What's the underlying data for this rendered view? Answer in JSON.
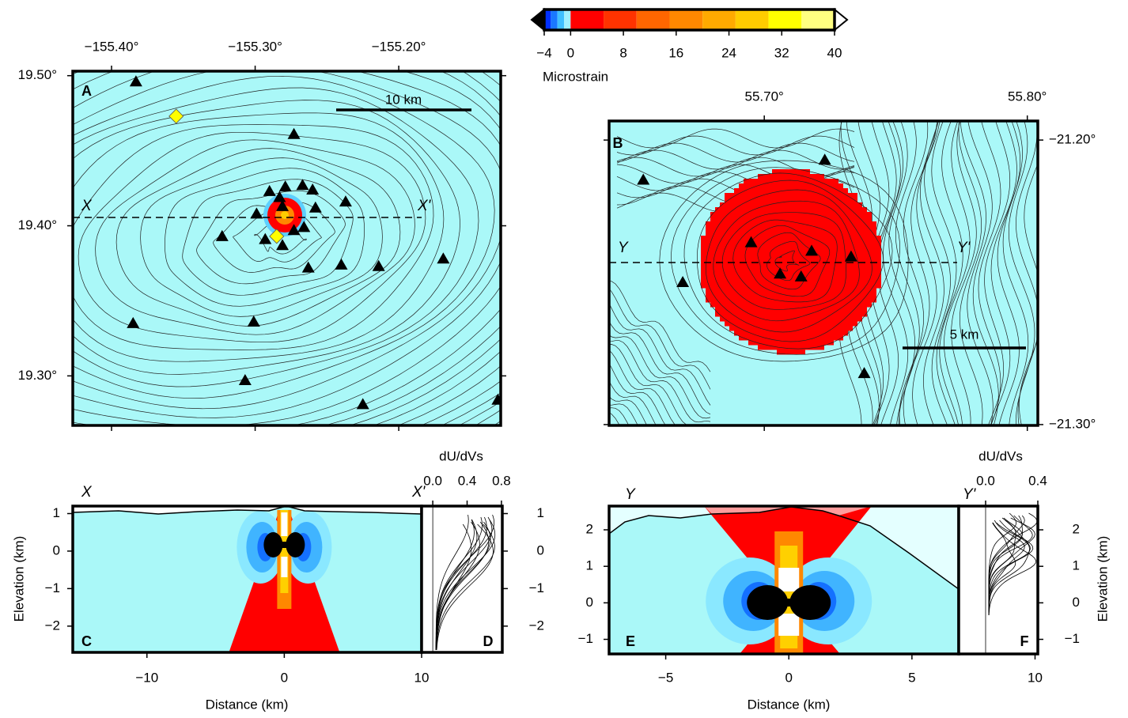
{
  "chart_data": [
    {
      "type": "colorbar",
      "label": "Microstrain",
      "bounds": [
        -4,
        -3,
        -2,
        -1,
        0,
        5,
        10,
        15,
        20,
        25,
        30,
        35,
        40
      ],
      "colors": [
        "#0030ff",
        "#1a78ff",
        "#40bfff",
        "#a0f0ff",
        "#ff0000",
        "#ff3300",
        "#ff6600",
        "#ff8800",
        "#ffaa00",
        "#ffcc00",
        "#ffff00",
        "#ffff80"
      ],
      "under_color": "#000000",
      "over_color": "#ffffff",
      "xlim": [
        -4,
        40
      ],
      "xticks": [
        {
          "value": -4,
          "label": "−4"
        },
        0,
        8,
        16,
        24,
        32,
        40
      ]
    },
    {
      "type": "map",
      "panel": "A",
      "start_label": "X",
      "end_label": "X'",
      "scale_label": "10 km",
      "xlim": [
        -155.427,
        -155.129
      ],
      "ylim": [
        19.267,
        19.503
      ],
      "xticks": [
        {
          "value": -155.4,
          "label": "−155.40°"
        },
        {
          "value": -155.3,
          "label": "−155.30°"
        },
        {
          "value": -155.2,
          "label": "−155.20°"
        }
      ],
      "yticks": [
        {
          "value": 19.5,
          "label": "19.50°"
        },
        {
          "value": 19.4,
          "label": "19.40°"
        },
        {
          "value": 19.3,
          "label": "19.30°"
        }
      ],
      "volcanoes": {
        "color": "#000000",
        "x": [
          -155.383,
          -155.273,
          -155.29,
          -155.279,
          -155.267,
          -155.26,
          -155.283,
          -155.237,
          -155.258,
          -155.299,
          -155.281,
          -155.323,
          -155.293,
          -155.273,
          -155.266,
          -155.281,
          -155.263,
          -155.24,
          -155.214,
          -155.169,
          -155.385,
          -155.301,
          -155.307,
          -155.225,
          -155.131
        ],
        "y": [
          19.496,
          19.461,
          19.423,
          19.426,
          19.427,
          19.424,
          19.419,
          19.416,
          19.412,
          19.408,
          19.413,
          19.393,
          19.391,
          19.397,
          19.399,
          19.387,
          19.372,
          19.374,
          19.373,
          19.378,
          19.335,
          19.336,
          19.297,
          19.281,
          19.284
        ]
      },
      "sites": {
        "color": "#ffff00",
        "x": [
          -155.355,
          -155.285
        ],
        "y": [
          19.473,
          19.393
        ]
      }
    },
    {
      "type": "map",
      "panel": "B",
      "start_label": "Y",
      "end_label": "Y'",
      "scale_label": "5 km",
      "xlim": [
        55.641,
        55.804
      ],
      "ylim": [
        -21.3003,
        -21.1933
      ],
      "xticks": [
        {
          "value": 55.7,
          "label": "55.70°"
        },
        {
          "value": 55.8,
          "label": "55.80°"
        }
      ],
      "yticks": [
        {
          "value": -21.2,
          "label": "−21.20°"
        },
        {
          "value": -21.3,
          "label": "−21.30°"
        }
      ],
      "volcanoes": {
        "color": "#000000",
        "x": [
          55.723,
          55.654,
          55.695,
          55.718,
          55.733,
          55.706,
          55.714,
          55.669,
          55.738
        ],
        "y": [
          -21.207,
          -21.214,
          -21.236,
          -21.239,
          -21.241,
          -21.247,
          -21.248,
          -21.25,
          -21.282
        ]
      }
    },
    {
      "type": "section",
      "panel": "C",
      "start_label": "X",
      "end_label": "X'",
      "xlabel": "Distance (km)",
      "ylabel": "Elevation (km)",
      "xlim": [
        -15.4,
        10
      ],
      "ylim": [
        -2.7,
        1.2
      ],
      "xticks": [
        {
          "value": -10,
          "label": "−10"
        },
        0,
        10
      ],
      "yticks": [
        1,
        0,
        {
          "value": -1,
          "label": "−1"
        },
        {
          "value": -2,
          "label": "−2"
        }
      ]
    },
    {
      "type": "profile",
      "panel": "D",
      "xlabel": "dU/dVs",
      "xlim": [
        -0.13,
        0.81
      ],
      "ylim": [
        -2.7,
        1.2
      ],
      "xticks": [
        {
          "value": 0,
          "label": "0.0"
        },
        0.4,
        {
          "value": 0.8,
          "label": "0.8"
        }
      ],
      "yticks": [
        1,
        0,
        {
          "value": -1,
          "label": "−1"
        },
        {
          "value": -2,
          "label": "−2"
        }
      ]
    },
    {
      "type": "section",
      "panel": "E",
      "start_label": "Y",
      "end_label": "Y'",
      "xlabel": "Distance (km)",
      "xlim": [
        -7.3,
        6.9
      ],
      "ylim": [
        -1.4,
        2.65
      ],
      "xticks": [
        {
          "value": -5,
          "label": "−5"
        },
        0,
        5,
        10
      ],
      "yticks": [
        2,
        1,
        0,
        {
          "value": -1,
          "label": "−1"
        }
      ]
    },
    {
      "type": "profile",
      "panel": "F",
      "xlabel": "dU/dVs",
      "ylabel": "Elevation (km)",
      "xlim": [
        -0.206,
        0.4
      ],
      "ylim": [
        -1.4,
        2.65
      ],
      "xticks": [
        {
          "value": 0,
          "label": "0.0"
        },
        0.4
      ],
      "yticks": [
        2,
        1,
        0,
        {
          "value": -1,
          "label": "−1"
        }
      ]
    }
  ]
}
